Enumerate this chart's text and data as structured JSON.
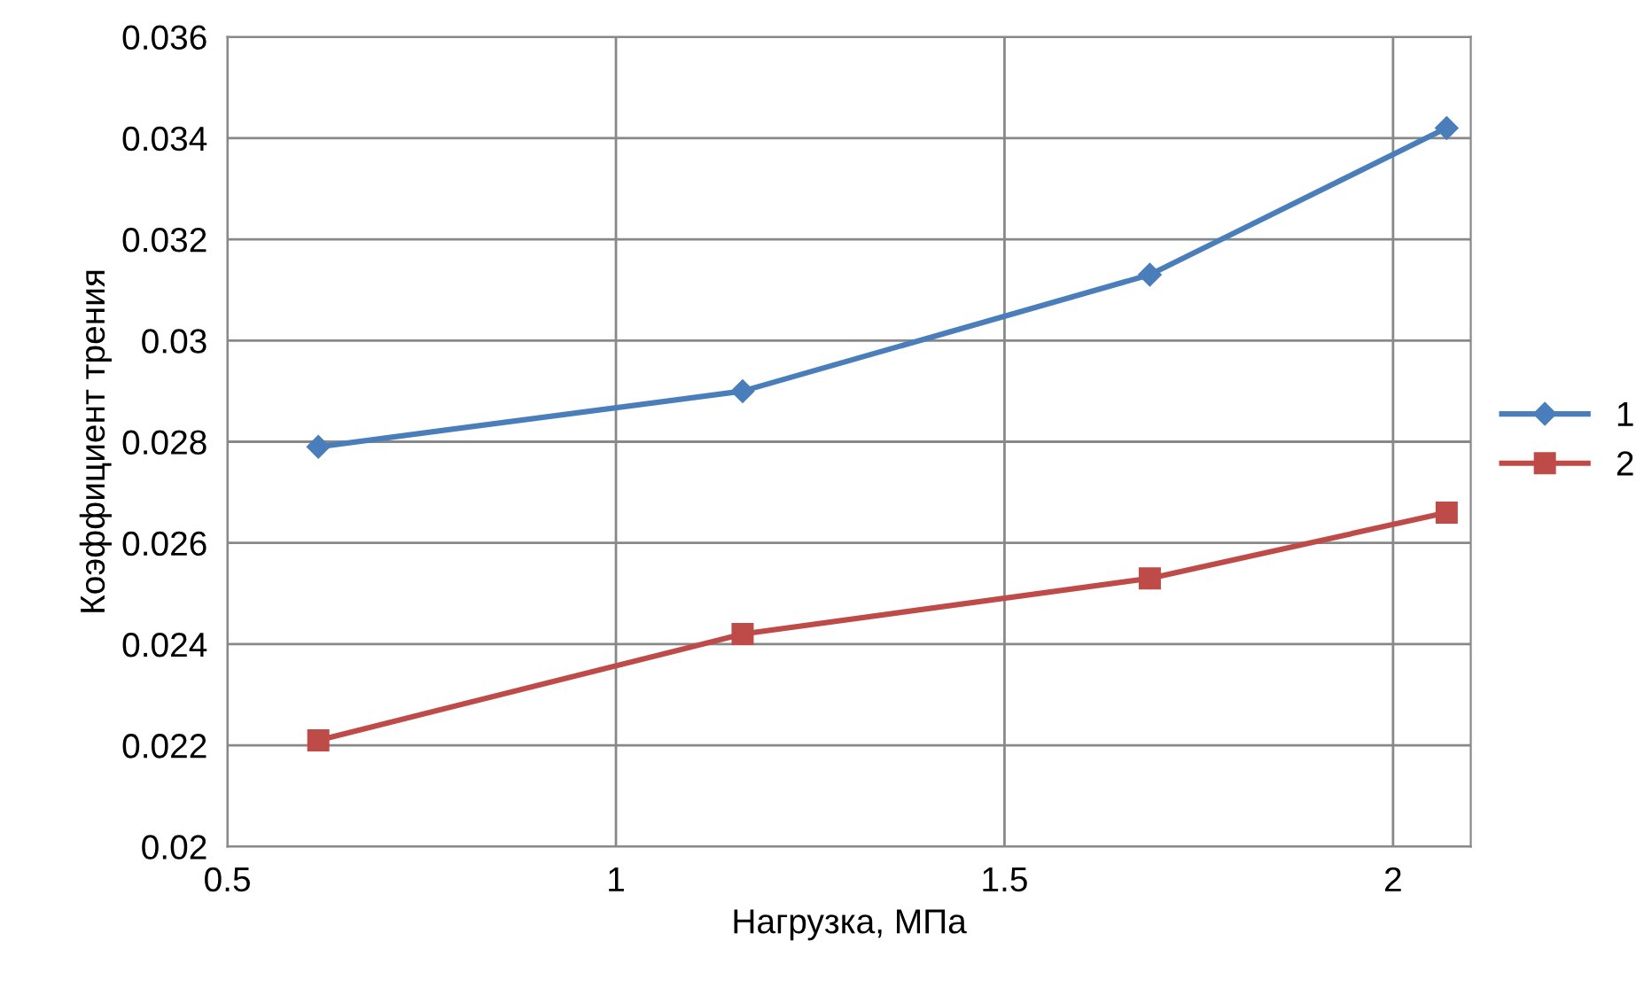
{
  "chart_data": {
    "type": "line",
    "xlabel": "Нагрузка, МПа",
    "ylabel": "Коэффициент трения",
    "x": [
      0.617,
      1.163,
      1.687,
      2.069
    ],
    "series": [
      {
        "name": "1",
        "color": "#4a7ebb",
        "marker": "diamond",
        "values": [
          0.0279,
          0.029,
          0.0313,
          0.0342
        ]
      },
      {
        "name": "2",
        "color": "#be4b48",
        "marker": "square",
        "values": [
          0.0221,
          0.0242,
          0.0253,
          0.0266
        ]
      }
    ],
    "xlim": [
      0.5,
      2.1
    ],
    "xticks": [
      0.5,
      1,
      1.5,
      2
    ],
    "ylim": [
      0.02,
      0.036
    ],
    "yticks": [
      0.02,
      0.022,
      0.024,
      0.026,
      0.028,
      0.03,
      0.032,
      0.034,
      0.036
    ],
    "grid": true,
    "legend": "right",
    "line_style": "solid"
  }
}
